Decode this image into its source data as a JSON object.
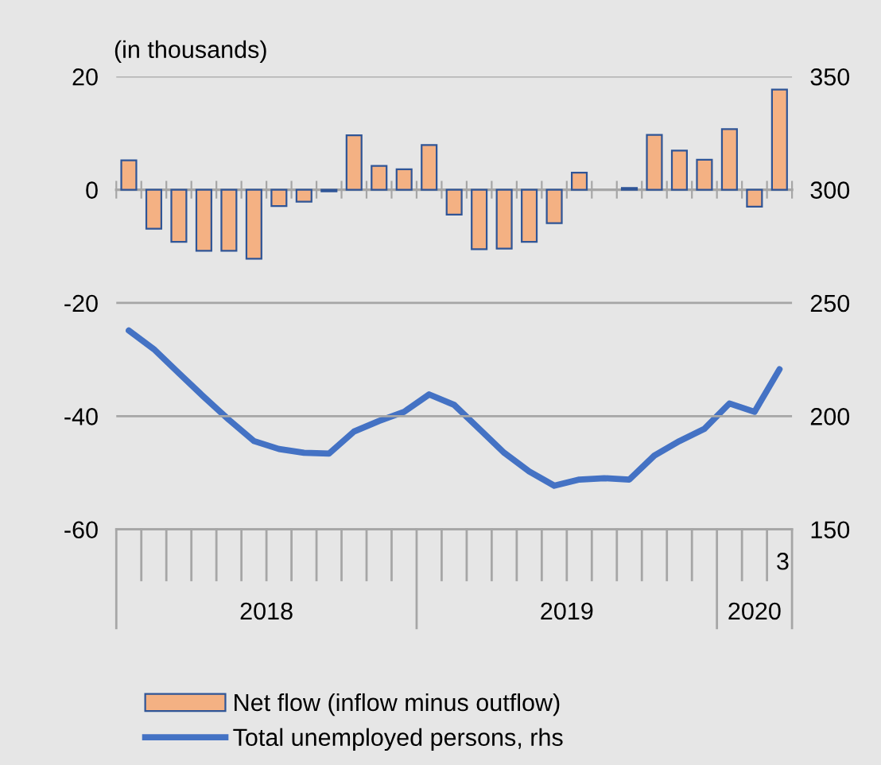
{
  "chart_data": {
    "type": "bar",
    "ylabel": "(in thousands)",
    "categories": [
      null,
      null,
      null,
      null,
      null,
      null,
      null,
      null,
      null,
      null,
      null,
      null,
      null,
      null,
      null,
      null,
      null,
      null,
      null,
      null,
      null,
      null,
      null,
      null,
      null,
      null,
      "3"
    ],
    "series": [
      {
        "name": "Net flow (inflow minus outflow)",
        "color": "#f4b183",
        "values": [
          5.2,
          -6.9,
          -9.2,
          -10.8,
          -10.8,
          -12.2,
          -2.9,
          -2.1,
          -0.3,
          9.6,
          4.2,
          3.6,
          7.9,
          -4.4,
          -10.5,
          -10.4,
          -9.2,
          -5.9,
          3.0,
          null,
          0.3,
          9.7,
          6.9,
          5.3,
          10.7,
          -3.0,
          17.7
        ]
      },
      {
        "name": "Total unemployed persons, rhs",
        "type": "line",
        "axis": "y2",
        "color": "#4472c4",
        "values": [
          237.8,
          229.6,
          219,
          208.5,
          198.4,
          189,
          185.5,
          183.8,
          183.5,
          193.2,
          197.9,
          201.9,
          209.6,
          205,
          194.4,
          183.8,
          175.6,
          169.3,
          172,
          172.6,
          172,
          182.6,
          189,
          194.4,
          205.6,
          201.9,
          220.7
        ]
      }
    ],
    "ylim": [
      -60,
      20
    ],
    "yticks": [
      -60,
      -40,
      -20,
      0,
      20
    ],
    "y2lim": [
      150,
      350
    ],
    "y2ticks": [
      150,
      200,
      250,
      300,
      350
    ],
    "annotations": [
      "2018",
      "2019",
      "2020"
    ],
    "grid": "y",
    "legend": "bottom"
  }
}
